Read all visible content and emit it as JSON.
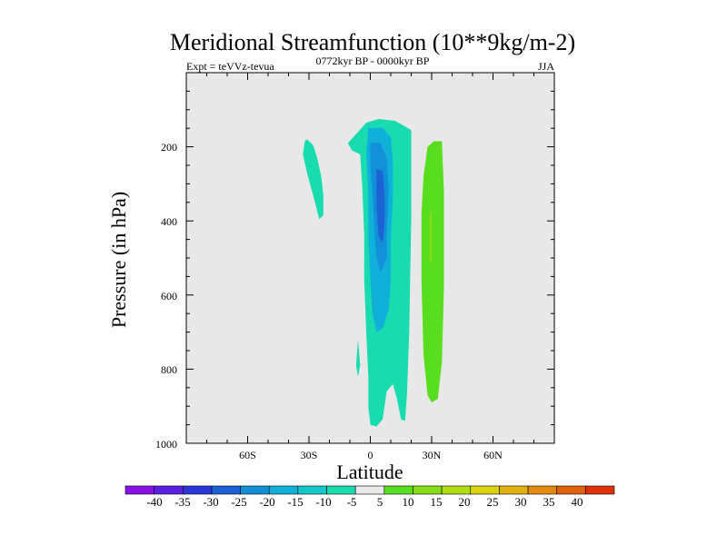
{
  "chart_data": {
    "type": "heatmap",
    "title": "Meridional Streamfunction (10**9kg/m-2)",
    "subtitle_left": "Expt = teVVz-tevua",
    "subtitle_center": "0772kyr BP - 0000kyr BP",
    "subtitle_right": "JJA",
    "xlabel": "Latitude",
    "ylabel": "Pressure (in hPa)",
    "xlim": [
      -90,
      90
    ],
    "ylim": [
      1000,
      0
    ],
    "x_ticks": [
      {
        "value": -60,
        "label": "60S"
      },
      {
        "value": -30,
        "label": "30S"
      },
      {
        "value": 0,
        "label": "0"
      },
      {
        "value": 30,
        "label": "30N"
      },
      {
        "value": 60,
        "label": "60N"
      }
    ],
    "y_ticks": [
      {
        "value": 200,
        "label": "200"
      },
      {
        "value": 400,
        "label": "400"
      },
      {
        "value": 600,
        "label": "600"
      },
      {
        "value": 800,
        "label": "800"
      },
      {
        "value": 1000,
        "label": "1000"
      }
    ],
    "background_color": "#e8e8e8",
    "colorbar": {
      "labels": [
        "-40",
        "-35",
        "-30",
        "-25",
        "-20",
        "-15",
        "-10",
        "-5",
        "5",
        "10",
        "15",
        "20",
        "25",
        "30",
        "35",
        "40"
      ],
      "colors": [
        "#8a10e6",
        "#5a1ee0",
        "#2c36d8",
        "#1c62d6",
        "#1190d8",
        "#10b0d8",
        "#14c8cc",
        "#18dcb0",
        "#e8e8e8",
        "#58de1e",
        "#86dc16",
        "#b0dc12",
        "#d8d410",
        "#e0b010",
        "#e08a10",
        "#e0600c",
        "#dc3008"
      ]
    },
    "regions": [
      {
        "level": -5,
        "color": "#18dcb0",
        "points": [
          [
            -31,
            180
          ],
          [
            -28,
            195
          ],
          [
            -26,
            230
          ],
          [
            -24,
            280
          ],
          [
            -23,
            330
          ],
          [
            -23,
            385
          ],
          [
            -25,
            395
          ],
          [
            -28,
            330
          ],
          [
            -31,
            270
          ],
          [
            -33,
            220
          ],
          [
            -32,
            185
          ]
        ]
      },
      {
        "level": -5,
        "color": "#18dcb0",
        "points": [
          [
            -11,
            190
          ],
          [
            -6,
            160
          ],
          [
            -2,
            135
          ],
          [
            4,
            125
          ],
          [
            12,
            130
          ],
          [
            17,
            145
          ],
          [
            20,
            155
          ],
          [
            20,
            400
          ],
          [
            19,
            700
          ],
          [
            18,
            860
          ],
          [
            17,
            940
          ],
          [
            15,
            935
          ],
          [
            13,
            880
          ],
          [
            11,
            840
          ],
          [
            8,
            860
          ],
          [
            6,
            935
          ],
          [
            3,
            955
          ],
          [
            0,
            950
          ],
          [
            -1,
            900
          ],
          [
            -1,
            820
          ],
          [
            -2,
            700
          ],
          [
            -3,
            560
          ],
          [
            -3,
            440
          ],
          [
            -4,
            300
          ],
          [
            -5,
            220
          ],
          [
            -9,
            210
          ]
        ]
      },
      {
        "level": -5,
        "color": "#18dcb0",
        "points": [
          [
            -6,
            720
          ],
          [
            -5,
            790
          ],
          [
            -6,
            820
          ],
          [
            -7,
            790
          ]
        ]
      },
      {
        "level": -10,
        "color": "#10b0d8",
        "points": [
          [
            -1,
            150
          ],
          [
            6,
            148
          ],
          [
            10,
            175
          ],
          [
            11,
            240
          ],
          [
            11,
            340
          ],
          [
            10,
            450
          ],
          [
            10,
            560
          ],
          [
            9,
            640
          ],
          [
            6,
            690
          ],
          [
            3,
            700
          ],
          [
            1,
            650
          ],
          [
            0,
            560
          ],
          [
            -1,
            440
          ],
          [
            -1,
            320
          ],
          [
            -2,
            220
          ]
        ]
      },
      {
        "level": -15,
        "color": "#1190d8",
        "points": [
          [
            0,
            190
          ],
          [
            5,
            190
          ],
          [
            8,
            230
          ],
          [
            9,
            320
          ],
          [
            8,
            430
          ],
          [
            8,
            500
          ],
          [
            5,
            540
          ],
          [
            3,
            500
          ],
          [
            2,
            420
          ],
          [
            1,
            320
          ],
          [
            0,
            250
          ]
        ]
      },
      {
        "level": -20,
        "color": "#1c62d6",
        "points": [
          [
            3,
            260
          ],
          [
            6,
            265
          ],
          [
            7,
            330
          ],
          [
            7,
            400
          ],
          [
            6,
            460
          ],
          [
            4,
            440
          ],
          [
            3,
            360
          ]
        ]
      },
      {
        "level": 10,
        "color": "#58de1e",
        "points": [
          [
            26,
            280
          ],
          [
            28,
            200
          ],
          [
            31,
            185
          ],
          [
            35,
            185
          ],
          [
            36,
            320
          ],
          [
            36,
            580
          ],
          [
            35,
            780
          ],
          [
            33,
            880
          ],
          [
            30,
            890
          ],
          [
            28,
            870
          ],
          [
            26,
            760
          ],
          [
            25,
            560
          ],
          [
            25,
            380
          ]
        ]
      },
      {
        "level": 15,
        "color": "#86dc16",
        "points": [
          [
            29,
            380
          ],
          [
            30,
            370
          ],
          [
            30,
            510
          ],
          [
            29,
            510
          ]
        ]
      }
    ]
  }
}
